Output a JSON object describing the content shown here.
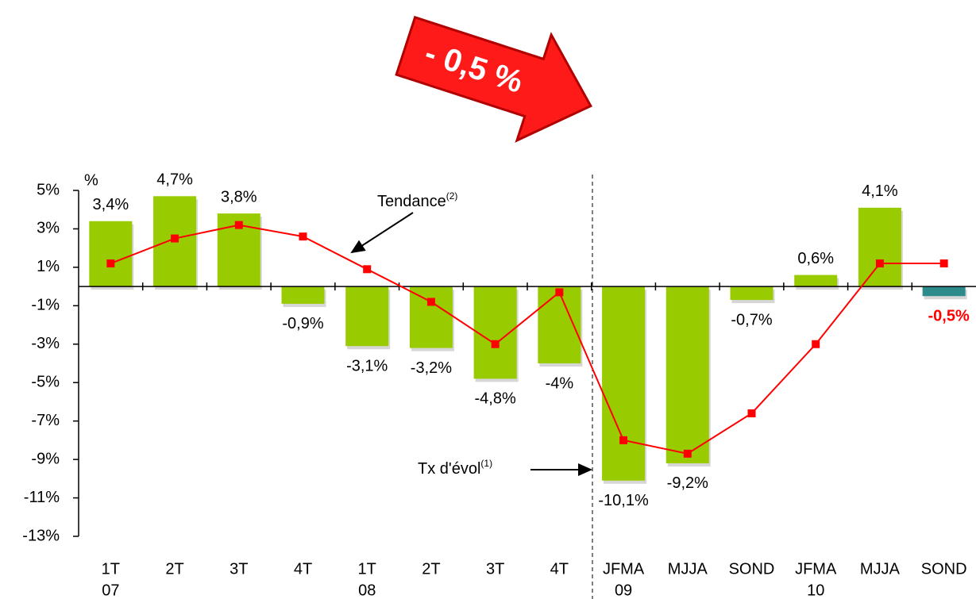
{
  "chart_data": {
    "type": "bar",
    "unit_label": "%",
    "banner": "- 0,5 %",
    "categories": [
      "1T",
      "2T",
      "3T",
      "4T",
      "1T",
      "2T",
      "3T",
      "4T",
      "JFMA",
      "MJJA",
      "SOND",
      "JFMA",
      "MJJA",
      "SOND"
    ],
    "years": [
      "07",
      null,
      null,
      null,
      "08",
      null,
      null,
      null,
      "09",
      null,
      null,
      "10",
      null,
      null
    ],
    "series": [
      {
        "name": "Tx d'évol",
        "note": "(1)",
        "type": "bar",
        "colors": [
          "#99cc00",
          "#99cc00",
          "#99cc00",
          "#99cc00",
          "#99cc00",
          "#99cc00",
          "#99cc00",
          "#99cc00",
          "#99cc00",
          "#99cc00",
          "#99cc00",
          "#99cc00",
          "#99cc00",
          "#2e8b8b"
        ],
        "values": [
          3.4,
          4.7,
          3.8,
          -0.9,
          -3.1,
          -3.2,
          -4.8,
          -4,
          -10.1,
          -9.2,
          -0.7,
          0.6,
          4.1,
          -0.5
        ],
        "value_labels": [
          "3,4%",
          "4,7%",
          "3,8%",
          "-0,9%",
          "-3,1%",
          "-3,2%",
          "-4,8%",
          "-4%",
          "-10,1%",
          "-9,2%",
          "-0,7%",
          "0,6%",
          "4,1%",
          "-0,5%"
        ],
        "highlight_label_color": "#ff0000"
      },
      {
        "name": "Tendance",
        "note": "(2)",
        "type": "line",
        "color": "#ff0000",
        "values": [
          1.2,
          2.5,
          3.2,
          2.6,
          0.9,
          -0.8,
          -3.0,
          -0.3,
          -8.0,
          -8.7,
          -6.6,
          -3.0,
          1.2,
          1.2
        ]
      }
    ],
    "ylim": [
      -13,
      5
    ],
    "yticks": [
      {
        "value": 5,
        "label": "5%"
      },
      {
        "value": 3,
        "label": "3%"
      },
      {
        "value": 1,
        "label": "1%"
      },
      {
        "value": -1,
        "label": "-1%"
      },
      {
        "value": -3,
        "label": "-3%"
      },
      {
        "value": -5,
        "label": "-5%"
      },
      {
        "value": -7,
        "label": "-7%"
      },
      {
        "value": -9,
        "label": "-9%"
      },
      {
        "value": -11,
        "label": "-11%"
      },
      {
        "value": -13,
        "label": "-13%"
      }
    ]
  }
}
